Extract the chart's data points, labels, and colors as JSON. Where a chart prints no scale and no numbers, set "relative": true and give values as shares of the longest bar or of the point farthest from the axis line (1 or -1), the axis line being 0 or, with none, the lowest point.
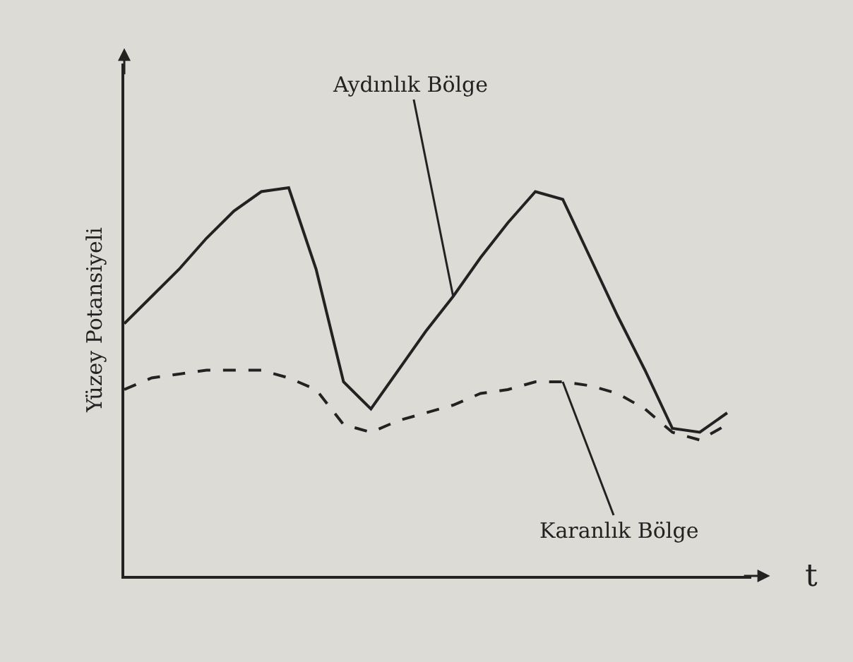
{
  "chart_data": {
    "type": "line",
    "relative": true,
    "ylabel": "Yüzey Potansiyeli",
    "xlabel": "t",
    "categories": [
      null,
      null,
      null,
      null,
      null,
      null,
      null,
      null,
      null,
      null,
      null,
      null,
      null,
      null,
      null,
      null,
      null,
      null,
      null,
      null,
      null,
      null,
      null
    ],
    "series": [
      {
        "name": "Aydınlık Bölge",
        "color": "#222222",
        "line_style": "solid",
        "values": [
          0.65,
          0.72,
          0.79,
          0.87,
          0.94,
          0.99,
          1.0,
          0.79,
          0.5,
          0.43,
          0.53,
          0.63,
          0.72,
          0.82,
          0.91,
          0.99,
          0.97,
          0.82,
          0.67,
          0.53,
          0.38,
          0.37,
          0.42
        ]
      },
      {
        "name": "Karanlık Bölge",
        "color": "#222222",
        "line_style": "dashed",
        "values": [
          0.48,
          0.51,
          0.52,
          0.53,
          0.53,
          0.53,
          0.51,
          0.48,
          0.39,
          0.37,
          0.4,
          0.42,
          0.44,
          0.47,
          0.48,
          0.5,
          0.5,
          0.49,
          0.47,
          0.43,
          0.37,
          0.35,
          0.39
        ]
      }
    ],
    "grid": false,
    "legend": false,
    "marker": "none"
  }
}
